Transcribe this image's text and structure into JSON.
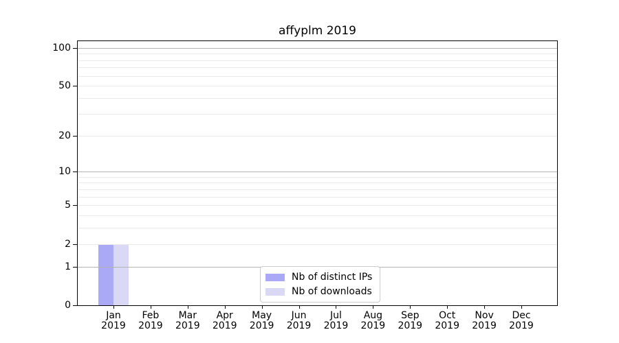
{
  "title": "affyplm 2019",
  "colors": {
    "distinct_ips": "#a9a9f5",
    "downloads": "#d9d9f6",
    "grid_major": "#b3b3b3",
    "grid_minor": "#e9e9e9",
    "axis": "#000000",
    "legend_border": "#cccccc",
    "background": "#ffffff"
  },
  "legend": {
    "items": [
      {
        "label": "Nb of distinct IPs"
      },
      {
        "label": "Nb of downloads"
      }
    ]
  },
  "chart_data": {
    "type": "bar",
    "title": "affyplm 2019",
    "categories": [
      {
        "month": "Jan",
        "year": "2019"
      },
      {
        "month": "Feb",
        "year": "2019"
      },
      {
        "month": "Mar",
        "year": "2019"
      },
      {
        "month": "Apr",
        "year": "2019"
      },
      {
        "month": "May",
        "year": "2019"
      },
      {
        "month": "Jun",
        "year": "2019"
      },
      {
        "month": "Jul",
        "year": "2019"
      },
      {
        "month": "Aug",
        "year": "2019"
      },
      {
        "month": "Sep",
        "year": "2019"
      },
      {
        "month": "Oct",
        "year": "2019"
      },
      {
        "month": "Nov",
        "year": "2019"
      },
      {
        "month": "Dec",
        "year": "2019"
      }
    ],
    "series": [
      {
        "name": "Nb of distinct IPs",
        "color": "#a9a9f5",
        "values": [
          2,
          0,
          0,
          0,
          0,
          0,
          0,
          0,
          0,
          0,
          0,
          0
        ]
      },
      {
        "name": "Nb of downloads",
        "color": "#d9d9f6",
        "values": [
          2,
          0,
          0,
          0,
          0,
          0,
          0,
          0,
          0,
          0,
          0,
          0
        ]
      }
    ],
    "xlabel": "",
    "ylabel": "",
    "y_scale": "log10(1+x)",
    "y_ticks": [
      0,
      1,
      2,
      5,
      10,
      20,
      50,
      100
    ],
    "y_major_gridlines": [
      1,
      10,
      100
    ],
    "y_minor_gridlines": [
      2,
      3,
      4,
      5,
      6,
      7,
      8,
      9,
      20,
      30,
      40,
      50,
      60,
      70,
      80,
      90
    ],
    "ylim": [
      0,
      113
    ],
    "grid": true,
    "legend_position": "lower-center-inside"
  }
}
